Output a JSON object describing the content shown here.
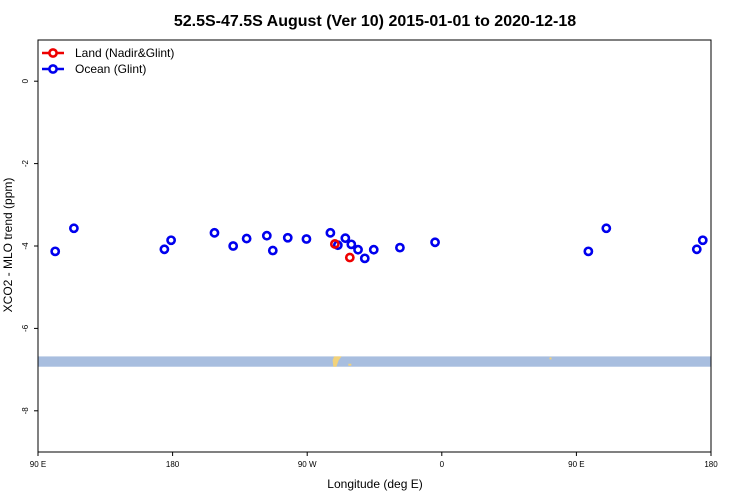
{
  "chart_data": {
    "type": "scatter",
    "title": "52.5S-47.5S August (Ver 10)   2015-01-01 to 2020-12-18",
    "xlabel": "Longitude (deg E)",
    "ylabel": "XCO2 - MLO trend (ppm)",
    "xlim": [
      90,
      540
    ],
    "ylim": [
      -9,
      1
    ],
    "x_ticks": [
      {
        "value": 90,
        "label": "90 E"
      },
      {
        "value": 180,
        "label": "180"
      },
      {
        "value": 270,
        "label": "90 W"
      },
      {
        "value": 360,
        "label": "0"
      },
      {
        "value": 450,
        "label": "90 E"
      },
      {
        "value": 540,
        "label": "180"
      }
    ],
    "y_ticks": [
      {
        "value": 0,
        "label": "0"
      },
      {
        "value": -2,
        "label": "-2"
      },
      {
        "value": -4,
        "label": "-4"
      },
      {
        "value": -6,
        "label": "-6"
      },
      {
        "value": -8,
        "label": "-8"
      }
    ],
    "legend_position": "top-left",
    "series": [
      {
        "name": "Land (Nadir&Glint)",
        "color": "#ee0000",
        "points": [
          {
            "x": 288.5,
            "y": -3.95
          },
          {
            "x": 298.5,
            "y": -4.28
          }
        ]
      },
      {
        "name": "Ocean (Glint)",
        "color": "#0000ee",
        "points": [
          {
            "x": 101.5,
            "y": -4.13
          },
          {
            "x": 114.0,
            "y": -3.57
          },
          {
            "x": 174.5,
            "y": -4.08
          },
          {
            "x": 179.0,
            "y": -3.86
          },
          {
            "x": 208.0,
            "y": -3.68
          },
          {
            "x": 220.5,
            "y": -4.0
          },
          {
            "x": 229.5,
            "y": -3.82
          },
          {
            "x": 243.0,
            "y": -3.75
          },
          {
            "x": 247.0,
            "y": -4.11
          },
          {
            "x": 257.0,
            "y": -3.8
          },
          {
            "x": 269.5,
            "y": -3.83
          },
          {
            "x": 285.5,
            "y": -3.68
          },
          {
            "x": 290.5,
            "y": -3.98
          },
          {
            "x": 295.5,
            "y": -3.81
          },
          {
            "x": 299.5,
            "y": -3.96
          },
          {
            "x": 304.0,
            "y": -4.09
          },
          {
            "x": 308.5,
            "y": -4.3
          },
          {
            "x": 314.5,
            "y": -4.09
          },
          {
            "x": 332.0,
            "y": -4.04
          },
          {
            "x": 355.5,
            "y": -3.91
          },
          {
            "x": 458.0,
            "y": -4.13
          },
          {
            "x": 470.0,
            "y": -3.57
          },
          {
            "x": 530.5,
            "y": -4.08
          },
          {
            "x": 534.5,
            "y": -3.86
          }
        ]
      }
    ],
    "map_strip": {
      "y_top": -6.68,
      "y_bottom": -6.93,
      "ocean_color": "#a8bedf",
      "land_color": "#f2d27a"
    }
  }
}
